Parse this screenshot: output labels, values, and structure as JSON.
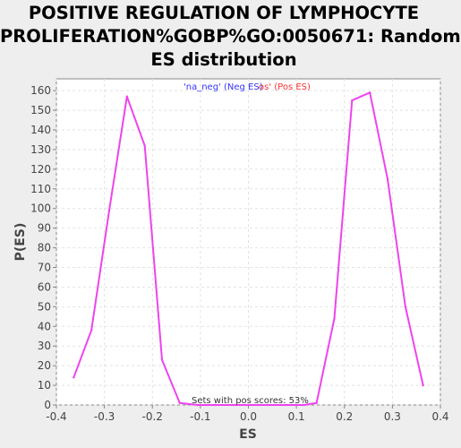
{
  "chart_data": {
    "type": "line",
    "title_lines": [
      "POSITIVE REGULATION OF LYMPHOCYTE",
      "PROLIFERATION%GOBP%GO:0050671: Random",
      "ES distribution"
    ],
    "xlabel": "ES",
    "ylabel": "P(ES)",
    "xlim": [
      -0.4,
      0.4
    ],
    "ylim": [
      0,
      166
    ],
    "x_ticks": [
      -0.4,
      -0.3,
      -0.2,
      -0.1,
      0.0,
      0.1,
      0.2,
      0.3,
      0.4
    ],
    "x_tick_labels": [
      "-0.4",
      "-0.3",
      "-0.2",
      "-0.1",
      "0.0",
      "0.1",
      "0.2",
      "0.3",
      "0.4"
    ],
    "y_ticks": [
      0,
      10,
      20,
      30,
      40,
      50,
      60,
      70,
      80,
      90,
      100,
      110,
      120,
      130,
      140,
      150,
      160
    ],
    "y_tick_labels": [
      "0",
      "10",
      "20",
      "30",
      "40",
      "50",
      "60",
      "70",
      "80",
      "90",
      "100",
      "110",
      "120",
      "130",
      "140",
      "150",
      "160"
    ],
    "grid": true,
    "legend": {
      "placement": "top-center",
      "neg_label": "'na_neg' (Neg ES)",
      "pos_label": "os' (Pos ES)",
      "neg_color": "#3333FF",
      "pos_color": "#FF3333"
    },
    "annotation": "Sets with pos scores: 53%",
    "series": [
      {
        "name": "Random ES distribution",
        "color": "#EE44EE",
        "x": [
          -0.364,
          -0.327,
          -0.29,
          -0.253,
          -0.216,
          -0.18,
          -0.143,
          -0.106,
          -0.069,
          -0.032,
          0.005,
          0.042,
          0.079,
          0.116,
          0.142,
          0.179,
          0.216,
          0.253,
          0.29,
          0.327,
          0.364
        ],
        "y": [
          14,
          38,
          99,
          157,
          132,
          23,
          1,
          0,
          0,
          0,
          0,
          0,
          0,
          0,
          1,
          44,
          155,
          159,
          115,
          50,
          10
        ]
      }
    ]
  }
}
